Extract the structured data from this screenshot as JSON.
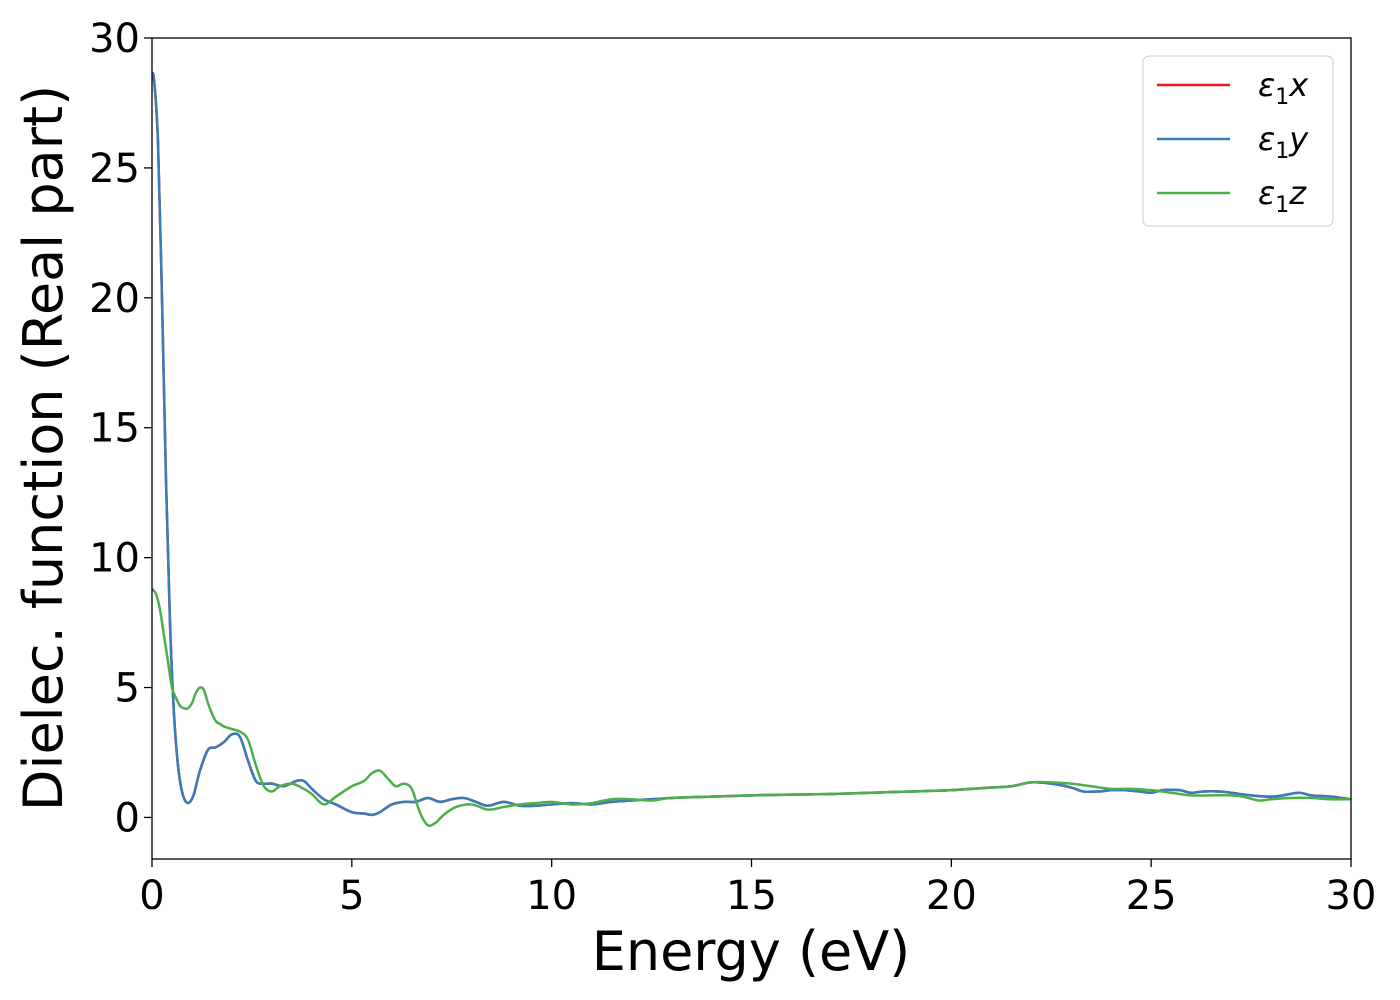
{
  "chart_data": {
    "type": "line",
    "title": "",
    "xlabel": "Energy (eV)",
    "ylabel": "Dielec. function (Real part)",
    "xlim": [
      0,
      30
    ],
    "ylim": [
      -1.6,
      30
    ],
    "xticks": [
      0,
      5,
      10,
      15,
      20,
      25,
      30
    ],
    "yticks": [
      0,
      5,
      10,
      15,
      20,
      25,
      30
    ],
    "xtick_labels": [
      "0",
      "5",
      "10",
      "15",
      "20",
      "25",
      "30"
    ],
    "ytick_labels": [
      "0",
      "5",
      "10",
      "15",
      "20",
      "25",
      "30"
    ],
    "grid": false,
    "legend_position": "top-right",
    "legend": [
      {
        "label": "ε₁x",
        "sym": "ε",
        "sub": "1",
        "var": "x",
        "color": "#e41a1c"
      },
      {
        "label": "ε₁y",
        "sym": "ε",
        "sub": "1",
        "var": "y",
        "color": "#377eb8"
      },
      {
        "label": "ε₁z",
        "sym": "ε",
        "sub": "1",
        "var": "z",
        "color": "#4daf4a"
      }
    ],
    "series": [
      {
        "name": "ε₁x",
        "color": "#e41a1c",
        "x": [
          0,
          0.05,
          0.15,
          0.25,
          0.35,
          0.45,
          0.55,
          0.65,
          0.75,
          0.85,
          0.95,
          1.05,
          1.2,
          1.4,
          1.6,
          1.8,
          2.0,
          2.2,
          2.4,
          2.6,
          2.8,
          3.0,
          3.3,
          3.6,
          3.8,
          4.0,
          4.3,
          4.6,
          5.0,
          5.3,
          5.5,
          5.7,
          6.0,
          6.3,
          6.6,
          6.9,
          7.2,
          7.5,
          7.8,
          8.1,
          8.4,
          8.8,
          9.2,
          9.6,
          10.0,
          10.5,
          11.0,
          11.5,
          12.0,
          13.0,
          14.0,
          15.0,
          16.0,
          17.0,
          18.0,
          19.0,
          20.0,
          21.0,
          21.5,
          22.0,
          22.5,
          23.0,
          23.3,
          23.7,
          24.0,
          24.3,
          24.7,
          25.0,
          25.3,
          25.7,
          26.0,
          26.3,
          26.7,
          27.0,
          27.5,
          28.0,
          28.3,
          28.7,
          29.0,
          29.5,
          30.0
        ],
        "y": [
          28.6,
          28.4,
          26.0,
          20.0,
          13.0,
          7.5,
          4.0,
          2.0,
          1.0,
          0.6,
          0.6,
          0.9,
          1.8,
          2.6,
          2.7,
          2.9,
          3.2,
          3.1,
          2.2,
          1.4,
          1.3,
          1.3,
          1.2,
          1.4,
          1.4,
          1.1,
          0.7,
          0.5,
          0.2,
          0.15,
          0.1,
          0.2,
          0.5,
          0.6,
          0.6,
          0.75,
          0.6,
          0.7,
          0.75,
          0.6,
          0.45,
          0.6,
          0.45,
          0.45,
          0.5,
          0.55,
          0.5,
          0.6,
          0.65,
          0.75,
          0.8,
          0.85,
          0.88,
          0.9,
          0.95,
          1.0,
          1.05,
          1.15,
          1.2,
          1.35,
          1.3,
          1.15,
          1.0,
          1.0,
          1.05,
          1.05,
          1.0,
          0.95,
          1.05,
          1.05,
          0.95,
          1.0,
          1.0,
          0.95,
          0.85,
          0.8,
          0.85,
          0.95,
          0.85,
          0.8,
          0.7
        ]
      },
      {
        "name": "ε₁y",
        "color": "#377eb8",
        "x": [
          0,
          0.05,
          0.15,
          0.25,
          0.35,
          0.45,
          0.55,
          0.65,
          0.75,
          0.85,
          0.95,
          1.05,
          1.2,
          1.4,
          1.6,
          1.8,
          2.0,
          2.2,
          2.4,
          2.6,
          2.8,
          3.0,
          3.3,
          3.6,
          3.8,
          4.0,
          4.3,
          4.6,
          5.0,
          5.3,
          5.5,
          5.7,
          6.0,
          6.3,
          6.6,
          6.9,
          7.2,
          7.5,
          7.8,
          8.1,
          8.4,
          8.8,
          9.2,
          9.6,
          10.0,
          10.5,
          11.0,
          11.5,
          12.0,
          13.0,
          14.0,
          15.0,
          16.0,
          17.0,
          18.0,
          19.0,
          20.0,
          21.0,
          21.5,
          22.0,
          22.5,
          23.0,
          23.3,
          23.7,
          24.0,
          24.3,
          24.7,
          25.0,
          25.3,
          25.7,
          26.0,
          26.3,
          26.7,
          27.0,
          27.5,
          28.0,
          28.3,
          28.7,
          29.0,
          29.5,
          30.0
        ],
        "y": [
          28.6,
          28.4,
          26.0,
          20.0,
          13.0,
          7.5,
          4.0,
          2.0,
          1.0,
          0.6,
          0.6,
          0.9,
          1.8,
          2.6,
          2.7,
          2.9,
          3.2,
          3.1,
          2.2,
          1.4,
          1.3,
          1.3,
          1.2,
          1.4,
          1.4,
          1.1,
          0.7,
          0.5,
          0.2,
          0.15,
          0.1,
          0.2,
          0.5,
          0.6,
          0.6,
          0.75,
          0.6,
          0.7,
          0.75,
          0.6,
          0.45,
          0.6,
          0.45,
          0.45,
          0.5,
          0.55,
          0.5,
          0.6,
          0.65,
          0.75,
          0.8,
          0.85,
          0.88,
          0.9,
          0.95,
          1.0,
          1.05,
          1.15,
          1.2,
          1.35,
          1.3,
          1.15,
          1.0,
          1.0,
          1.05,
          1.05,
          1.0,
          0.95,
          1.05,
          1.05,
          0.95,
          1.0,
          1.0,
          0.95,
          0.85,
          0.8,
          0.85,
          0.95,
          0.85,
          0.8,
          0.7
        ]
      },
      {
        "name": "ε₁z",
        "color": "#4daf4a",
        "x": [
          0,
          0.1,
          0.2,
          0.3,
          0.4,
          0.5,
          0.6,
          0.7,
          0.8,
          0.9,
          1.0,
          1.1,
          1.2,
          1.3,
          1.4,
          1.5,
          1.6,
          1.7,
          1.8,
          2.0,
          2.2,
          2.4,
          2.6,
          2.8,
          3.0,
          3.2,
          3.5,
          3.8,
          4.0,
          4.3,
          4.6,
          5.0,
          5.3,
          5.5,
          5.7,
          5.9,
          6.1,
          6.3,
          6.5,
          6.7,
          6.9,
          7.1,
          7.3,
          7.6,
          8.0,
          8.4,
          8.8,
          9.2,
          9.6,
          10.0,
          10.5,
          11.0,
          11.5,
          12.0,
          12.5,
          13.0,
          14.0,
          15.0,
          16.0,
          17.0,
          18.0,
          19.0,
          20.0,
          21.0,
          21.5,
          22.0,
          22.5,
          23.0,
          23.5,
          24.0,
          24.5,
          25.0,
          25.5,
          26.0,
          26.5,
          27.0,
          27.3,
          27.7,
          28.0,
          28.5,
          29.0,
          29.5,
          30.0
        ],
        "y": [
          8.8,
          8.6,
          8.0,
          7.0,
          6.0,
          5.0,
          4.6,
          4.3,
          4.2,
          4.2,
          4.4,
          4.8,
          5.0,
          4.9,
          4.4,
          4.0,
          3.7,
          3.6,
          3.5,
          3.4,
          3.3,
          3.0,
          2.0,
          1.2,
          1.0,
          1.2,
          1.3,
          1.1,
          0.9,
          0.5,
          0.8,
          1.2,
          1.4,
          1.7,
          1.8,
          1.5,
          1.2,
          1.3,
          1.1,
          0.2,
          -0.3,
          -0.2,
          0.1,
          0.4,
          0.5,
          0.3,
          0.4,
          0.5,
          0.55,
          0.6,
          0.5,
          0.55,
          0.7,
          0.7,
          0.65,
          0.75,
          0.8,
          0.85,
          0.88,
          0.9,
          0.95,
          1.0,
          1.05,
          1.15,
          1.2,
          1.35,
          1.35,
          1.3,
          1.2,
          1.1,
          1.1,
          1.05,
          0.95,
          0.85,
          0.85,
          0.85,
          0.8,
          0.65,
          0.7,
          0.75,
          0.75,
          0.7,
          0.7
        ]
      }
    ]
  }
}
